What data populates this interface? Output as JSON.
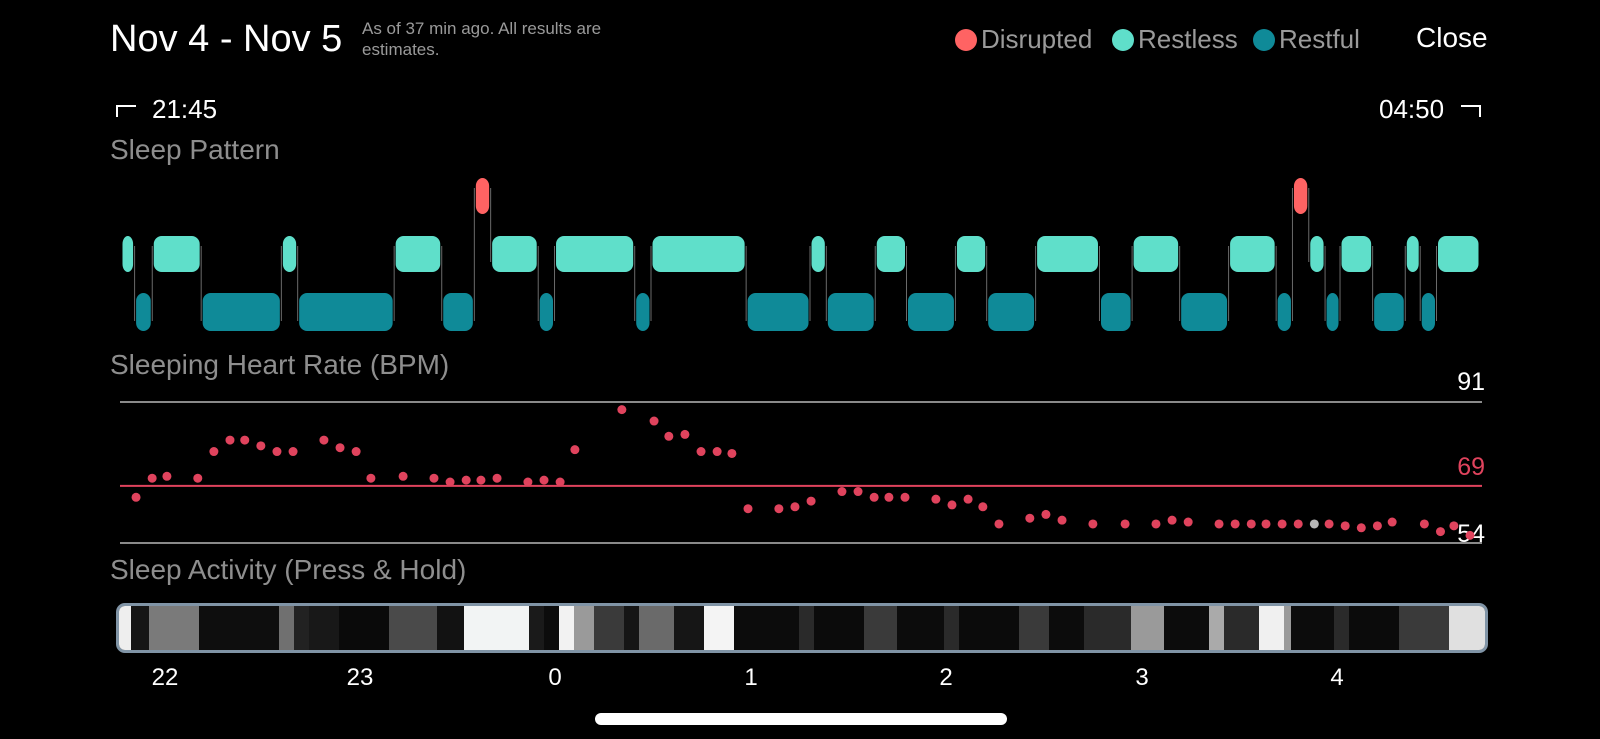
{
  "header": {
    "title": "Nov 4 - Nov 5",
    "subtitle": "As of 37 min ago. All results are estimates.",
    "close_label": "Close",
    "legend": [
      {
        "label": "Disrupted",
        "color": "#ff6363"
      },
      {
        "label": "Restless",
        "color": "#5fdfca"
      },
      {
        "label": "Restful",
        "color": "#0f8a98"
      }
    ]
  },
  "time_range": {
    "start": "21:45",
    "end": "04:50"
  },
  "sleep_pattern": {
    "title": "Sleep Pattern",
    "colors": {
      "Disrupted": "#ff6363",
      "Restless": "#5fdfca",
      "Restful": "#0f8a98"
    }
  },
  "heart_rate": {
    "title": "Sleeping Heart Rate (BPM)",
    "max_label": "91",
    "avg_label": "69",
    "min_label": "54",
    "colors": {
      "points": "#e0435d",
      "avg_line": "#e0435d",
      "grid": "#8a8a8a",
      "highlight_point": "#b8b8b8"
    }
  },
  "sleep_activity": {
    "title": "Sleep Activity (Press & Hold)",
    "border_color": "#8094a6"
  },
  "hour_labels": [
    "22",
    "23",
    "0",
    "1",
    "2",
    "3",
    "4"
  ],
  "chart_data": [
    {
      "type": "timeline",
      "title": "Sleep Pattern",
      "x_range": [
        "21:45",
        "04:50"
      ],
      "levels": [
        "Disrupted",
        "Restless",
        "Restful"
      ],
      "segments": [
        {
          "state": "Restless",
          "start": 0.0,
          "end": 0.01
        },
        {
          "state": "Restful",
          "start": 0.01,
          "end": 0.023
        },
        {
          "state": "Restless",
          "start": 0.023,
          "end": 0.059
        },
        {
          "state": "Restful",
          "start": 0.059,
          "end": 0.118
        },
        {
          "state": "Restless",
          "start": 0.118,
          "end": 0.13
        },
        {
          "state": "Restful",
          "start": 0.13,
          "end": 0.201
        },
        {
          "state": "Restless",
          "start": 0.201,
          "end": 0.236
        },
        {
          "state": "Restful",
          "start": 0.236,
          "end": 0.26
        },
        {
          "state": "Disrupted",
          "start": 0.26,
          "end": 0.272
        },
        {
          "state": "Restless",
          "start": 0.272,
          "end": 0.307
        },
        {
          "state": "Restful",
          "start": 0.307,
          "end": 0.319
        },
        {
          "state": "Restless",
          "start": 0.319,
          "end": 0.378
        },
        {
          "state": "Restful",
          "start": 0.378,
          "end": 0.39
        },
        {
          "state": "Restless",
          "start": 0.39,
          "end": 0.46
        },
        {
          "state": "Restful",
          "start": 0.46,
          "end": 0.507
        },
        {
          "state": "Restless",
          "start": 0.507,
          "end": 0.519
        },
        {
          "state": "Restful",
          "start": 0.519,
          "end": 0.555
        },
        {
          "state": "Restless",
          "start": 0.555,
          "end": 0.578
        },
        {
          "state": "Restful",
          "start": 0.578,
          "end": 0.614
        },
        {
          "state": "Restless",
          "start": 0.614,
          "end": 0.637
        },
        {
          "state": "Restful",
          "start": 0.637,
          "end": 0.673
        },
        {
          "state": "Restless",
          "start": 0.673,
          "end": 0.72
        },
        {
          "state": "Restful",
          "start": 0.72,
          "end": 0.744
        },
        {
          "state": "Restless",
          "start": 0.744,
          "end": 0.779
        },
        {
          "state": "Restful",
          "start": 0.779,
          "end": 0.815
        },
        {
          "state": "Restless",
          "start": 0.815,
          "end": 0.85
        },
        {
          "state": "Restful",
          "start": 0.85,
          "end": 0.862
        },
        {
          "state": "Disrupted",
          "start": 0.862,
          "end": 0.874
        },
        {
          "state": "Restless",
          "start": 0.874,
          "end": 0.886
        },
        {
          "state": "Restful",
          "start": 0.886,
          "end": 0.897
        },
        {
          "state": "Restless",
          "start": 0.897,
          "end": 0.921
        },
        {
          "state": "Restful",
          "start": 0.921,
          "end": 0.945
        },
        {
          "state": "Restless",
          "start": 0.945,
          "end": 0.956
        },
        {
          "state": "Restful",
          "start": 0.956,
          "end": 0.968
        },
        {
          "state": "Restless",
          "start": 0.968,
          "end": 1.0
        }
      ]
    },
    {
      "type": "scatter",
      "title": "Sleeping Heart Rate (BPM)",
      "x_range": [
        "21:45",
        "04:50"
      ],
      "ylim": [
        54,
        91
      ],
      "y_ticks": [
        91,
        69,
        54
      ],
      "reference_lines": {
        "max": 91,
        "average": 69,
        "min": 54
      },
      "x": [
        0.006,
        0.018,
        0.029,
        0.052,
        0.064,
        0.076,
        0.087,
        0.099,
        0.111,
        0.123,
        0.146,
        0.158,
        0.17,
        0.181,
        0.205,
        0.228,
        0.24,
        0.252,
        0.263,
        0.275,
        0.298,
        0.31,
        0.322,
        0.333,
        0.368,
        0.392,
        0.403,
        0.415,
        0.427,
        0.439,
        0.45,
        0.462,
        0.485,
        0.497,
        0.509,
        0.532,
        0.544,
        0.556,
        0.567,
        0.579,
        0.602,
        0.614,
        0.626,
        0.637,
        0.649,
        0.672,
        0.684,
        0.696,
        0.719,
        0.743,
        0.766,
        0.778,
        0.79,
        0.813,
        0.825,
        0.837,
        0.848,
        0.86,
        0.872,
        0.884,
        0.895,
        0.907,
        0.919,
        0.931,
        0.942,
        0.966,
        0.978,
        0.988,
        1.0
      ],
      "y": [
        66,
        71,
        71.5,
        71,
        78,
        81,
        81,
        79.5,
        78,
        78,
        81,
        79,
        78,
        71,
        71.5,
        71,
        70,
        70.5,
        70.5,
        71,
        70,
        70.5,
        70,
        78.5,
        89,
        86,
        82,
        82.5,
        78,
        78,
        77.5,
        63,
        63,
        63.5,
        65,
        67.5,
        67.5,
        66,
        66,
        66,
        65.5,
        64,
        65.5,
        63.5,
        59,
        60.5,
        61.5,
        60,
        59,
        59,
        59,
        60,
        59.5,
        59,
        59,
        59,
        59,
        59,
        59,
        59,
        59,
        58.5,
        58,
        58.5,
        59.5,
        59,
        57,
        58.5,
        56
      ]
    },
    {
      "type": "heatmap",
      "title": "Sleep Activity (Press & Hold)",
      "x_labels": [
        "22",
        "23",
        "0",
        "1",
        "2",
        "3",
        "4"
      ]
    }
  ]
}
